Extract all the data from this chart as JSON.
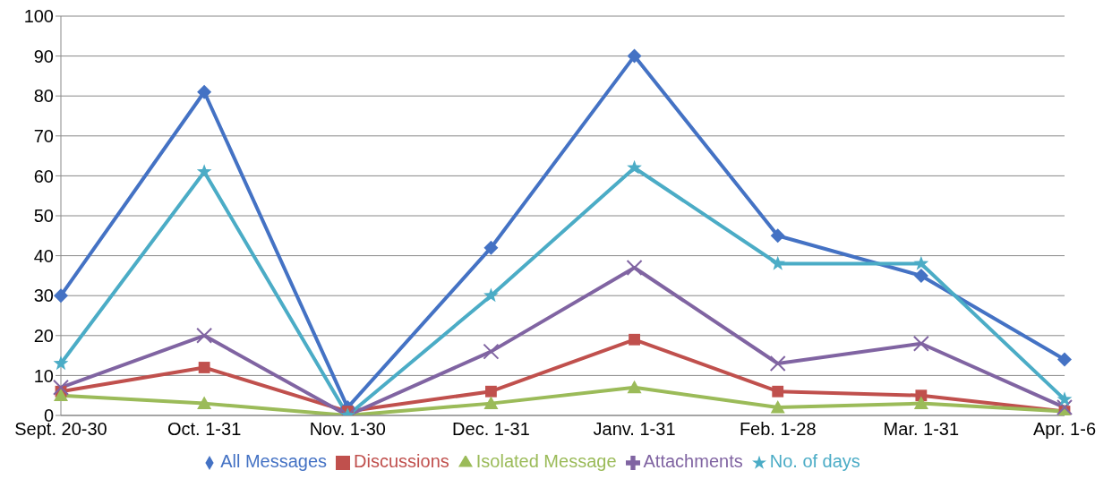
{
  "chart_data": {
    "type": "line",
    "categories": [
      "Sept. 20-30",
      "Oct. 1-31",
      "Nov. 1-30",
      "Dec. 1-31",
      "Janv. 1-31",
      "Feb. 1-28",
      "Mar. 1-31",
      "Apr. 1-6"
    ],
    "series": [
      {
        "name": "All Messages",
        "color": "#4472c4",
        "marker": "diamond",
        "values": [
          30,
          81,
          2,
          42,
          90,
          45,
          35,
          14
        ]
      },
      {
        "name": "Discussions",
        "color": "#c0504d",
        "marker": "square",
        "values": [
          6,
          12,
          1,
          6,
          19,
          6,
          5,
          1
        ]
      },
      {
        "name": "Isolated Message",
        "color": "#9bbb59",
        "marker": "triangle",
        "values": [
          5,
          3,
          0,
          3,
          7,
          2,
          3,
          1
        ]
      },
      {
        "name": "Attachments",
        "color": "#8064a2",
        "marker": "cross",
        "values": [
          7,
          20,
          0,
          16,
          37,
          13,
          18,
          2
        ]
      },
      {
        "name": "No. of days",
        "color": "#4bacc6",
        "marker": "star",
        "values": [
          13,
          61,
          0,
          30,
          62,
          38,
          38,
          4
        ]
      }
    ],
    "ylim": [
      0,
      100
    ],
    "yticks": [
      0,
      10,
      20,
      30,
      40,
      50,
      60,
      70,
      80,
      90,
      100
    ],
    "grid": "y",
    "legend": "bottom",
    "line_style": "solid"
  }
}
